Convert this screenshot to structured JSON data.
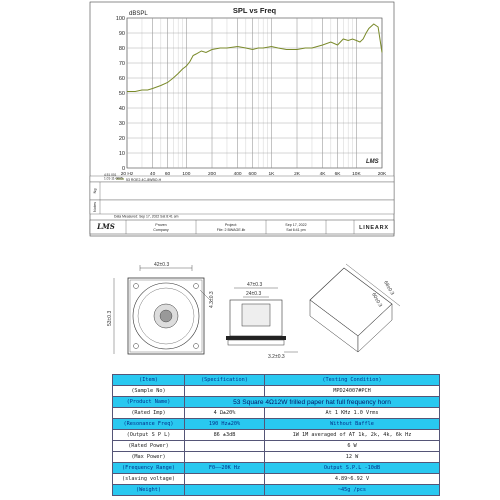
{
  "chart_data": {
    "type": "line",
    "title": "SPL vs Freq",
    "ylabel": "dBSPL",
    "xlabel": "",
    "x_scale": "log",
    "xlim": [
      20,
      20000
    ],
    "ylim": [
      0,
      100
    ],
    "y_ticks": [
      0,
      10,
      20,
      30,
      40,
      50,
      60,
      70,
      80,
      90,
      100
    ],
    "x_ticks": [
      {
        "v": 20,
        "label": "20 Hz"
      },
      {
        "v": 40,
        "label": "40"
      },
      {
        "v": 60,
        "label": "60"
      },
      {
        "v": 100,
        "label": "100"
      },
      {
        "v": 200,
        "label": "200"
      },
      {
        "v": 400,
        "label": "400"
      },
      {
        "v": 600,
        "label": "600"
      },
      {
        "v": 1000,
        "label": "1K"
      },
      {
        "v": 2000,
        "label": "2K"
      },
      {
        "v": 4000,
        "label": "4K"
      },
      {
        "v": 6000,
        "label": "6K"
      },
      {
        "v": 10000,
        "label": "10K"
      },
      {
        "v": 20000,
        "label": "20K"
      }
    ],
    "grid": true,
    "line_color": "#7a8a2a",
    "series": [
      {
        "name": "53 ROE2-4C-8WBO-H",
        "x": [
          20,
          25,
          30,
          35,
          40,
          50,
          60,
          70,
          80,
          90,
          100,
          110,
          120,
          130,
          150,
          170,
          200,
          250,
          300,
          400,
          500,
          600,
          700,
          800,
          1000,
          1200,
          1500,
          2000,
          2500,
          3000,
          4000,
          5000,
          6000,
          7000,
          8000,
          9000,
          10000,
          11000,
          12000,
          13000,
          14000,
          16000,
          18000,
          20000
        ],
        "y": [
          51,
          51,
          52,
          52,
          53,
          55,
          57,
          60,
          63,
          66,
          68,
          71,
          75,
          76,
          78,
          77,
          79,
          80,
          80,
          81,
          80,
          79,
          80,
          80,
          81,
          80,
          79,
          79,
          80,
          80,
          82,
          84,
          82,
          86,
          85,
          86,
          85,
          84,
          86,
          90,
          93,
          96,
          94,
          77
        ]
      }
    ],
    "legend_entries": [
      "53 ROE2-4C-8WBO-H"
    ],
    "rows": {
      "row1_label": "Ng",
      "row2_label": "Notes"
    },
    "measured_text": "Data Measured: Sep 17, 2022 Sat 8:41 am",
    "lms_info_lines": [
      "4.51.001",
      "1.01-11-0005"
    ],
    "footer": {
      "logo": "LMS",
      "proven_label": "Proven",
      "company_label": "Company",
      "project_label": "Project:",
      "file_label": "File: 2 BWAGE.lib",
      "date_line1": "Sep 17, 2022",
      "date_line2": "Sat    6:41 pm",
      "brand": "LINEARX"
    },
    "lms_corner_logo": "LMS"
  },
  "drawing": {
    "front_labels": {
      "top": "42±0.3",
      "left": "53±0.3",
      "right": "4.3±0.3"
    },
    "side_labels": {
      "top": "47±0.3",
      "inner": "24±0.3",
      "bottom": "3.2±0.3"
    },
    "angled_labels": {
      "outer": "68±0.3",
      "inner": "60±0.3"
    }
  },
  "spec_table": {
    "header": [
      "(Item)",
      "(Specification)",
      "(Testing Condition)"
    ],
    "rows": [
      {
        "key": "(Sample No)",
        "spec": "",
        "cond": "MPD24007#PCH",
        "span": false
      },
      {
        "key": "(Product Name)",
        "spec": "53 Square 4Ω12W frilled paper hat full frequency horn",
        "cond": "",
        "span": true
      },
      {
        "key": "(Rated Imp)",
        "spec": "4  Ω±20%",
        "cond": "At 1 KHz  1.0 Vrms",
        "span": false
      },
      {
        "key": "(Resonance Freq)",
        "spec": "190 Hz±20%",
        "cond": "Without Baffle",
        "span": false
      },
      {
        "key": "(Output S P L)",
        "spec": "86  ±3dB",
        "cond": "1W 1M averaged of AT  1k, 2k, 4k, 6k Hz",
        "span": false
      },
      {
        "key": "(Rated Power)",
        "spec": "",
        "cond": "6 W",
        "span": false
      },
      {
        "key": "(Max Power)",
        "spec": "",
        "cond": "12 W",
        "span": false
      },
      {
        "key": "(Frequency Range)",
        "spec": "F0——20K Hz",
        "cond": "Output S.P.L -10dB",
        "span": false
      },
      {
        "key": "(slaving voltage)",
        "spec": "",
        "cond": "4.89~6.92 V",
        "span": false
      },
      {
        "key": "(Weight)",
        "spec": "",
        "cond": "~45g /pcs",
        "span": false
      }
    ],
    "cyan_rows": [
      0,
      2,
      4,
      8,
      10
    ]
  }
}
